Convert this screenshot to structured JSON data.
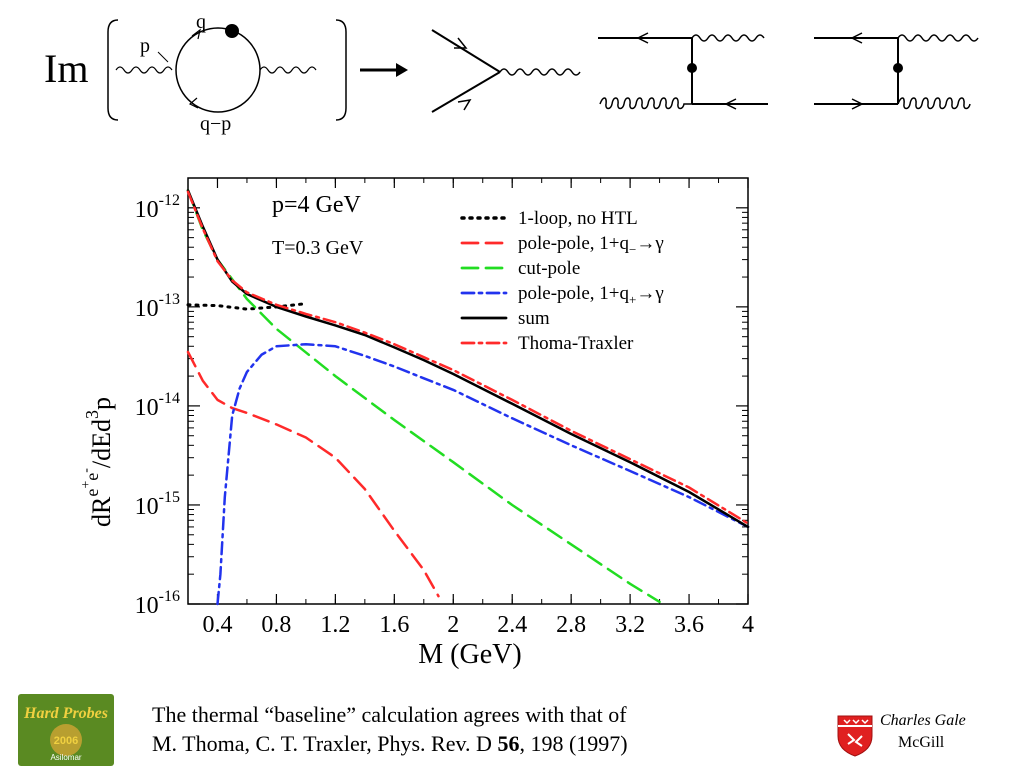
{
  "diagram": {
    "im_label": "Im",
    "loop_labels": {
      "p": "p",
      "q": "q",
      "q_minus_p": "q−p"
    }
  },
  "chart_data": {
    "type": "line",
    "title": "",
    "annotations": [
      "p=4 GeV",
      "T=0.3 GeV"
    ],
    "xlabel": "M (GeV)",
    "ylabel_parts": {
      "a": "dR",
      "sup": "e",
      "sup_plus": "+",
      "sup2": "e",
      "sup_minus": "-",
      "b": "/dEd",
      "sup3": "3",
      "c": "p"
    },
    "xlim": [
      0.2,
      4.0
    ],
    "ylim": [
      1e-16,
      2e-12
    ],
    "yscale": "log",
    "x_ticks": [
      0.4,
      0.8,
      1.2,
      1.6,
      2,
      2.4,
      2.8,
      3.2,
      3.6,
      4
    ],
    "x_tick_labels": [
      "0.4",
      "0.8",
      "1.2",
      "1.6",
      "2",
      "2.4",
      "2.8",
      "3.2",
      "3.6",
      "4"
    ],
    "y_ticks": [
      {
        "base": "10",
        "exp": "-16",
        "value": 1e-16
      },
      {
        "base": "10",
        "exp": "-15",
        "value": 1e-15
      },
      {
        "base": "10",
        "exp": "-14",
        "value": 1e-14
      },
      {
        "base": "10",
        "exp": "-13",
        "value": 1e-13
      },
      {
        "base": "10",
        "exp": "-12",
        "value": 1e-12
      }
    ],
    "legend_position": "top-right",
    "series": [
      {
        "name": "1-loop, no HTL",
        "color": "#000000",
        "dash": "dotted",
        "x": [
          0.2,
          0.4,
          0.6,
          0.8,
          1.0
        ],
        "y": [
          1.05e-13,
          1.03e-13,
          9.5e-14,
          1e-13,
          1.08e-13
        ]
      },
      {
        "name": "pole-pole, 1+q_−→γ",
        "label_parts": [
          "pole-pole, 1+q",
          "−",
          "→γ"
        ],
        "color": "#ff2a2a",
        "dash": "long-dash",
        "x": [
          0.2,
          0.3,
          0.4,
          0.5,
          0.6,
          0.8,
          1.0,
          1.2,
          1.4,
          1.6,
          1.8,
          1.9
        ],
        "y": [
          3.5e-14,
          1.8e-14,
          1.15e-14,
          9.5e-15,
          8.5e-15,
          6.5e-15,
          4.8e-15,
          3e-15,
          1.45e-15,
          5.5e-16,
          2.2e-16,
          1.2e-16
        ]
      },
      {
        "name": "cut-pole",
        "color": "#22dd22",
        "dash": "long-dash",
        "x": [
          0.2,
          0.3,
          0.4,
          0.5,
          0.6,
          0.8,
          1.2,
          1.6,
          2.0,
          2.4,
          2.8,
          3.2,
          3.4
        ],
        "y": [
          1.5e-12,
          6e-13,
          3e-13,
          1.9e-13,
          1.2e-13,
          6e-14,
          2e-14,
          7.2e-15,
          2.7e-15,
          1e-15,
          4e-16,
          1.6e-16,
          1.05e-16
        ]
      },
      {
        "name": "pole-pole, 1+q_+→γ",
        "label_parts": [
          "pole-pole, 1+q",
          "+",
          "→γ"
        ],
        "color": "#2233ee",
        "dash": "dash-dot",
        "x": [
          0.4,
          0.42,
          0.45,
          0.5,
          0.55,
          0.6,
          0.7,
          0.8,
          1.0,
          1.2,
          1.4,
          1.6,
          1.8,
          2.0,
          2.4,
          2.8,
          3.2,
          3.6,
          4.0
        ],
        "y": [
          1e-16,
          2e-16,
          1.2e-15,
          8e-15,
          1.5e-14,
          2.2e-14,
          3.3e-14,
          4e-14,
          4.2e-14,
          4e-14,
          3.2e-14,
          2.5e-14,
          1.9e-14,
          1.45e-14,
          7.5e-15,
          4e-15,
          2.2e-15,
          1.2e-15,
          6e-16
        ]
      },
      {
        "name": "sum",
        "color": "#000000",
        "dash": "solid",
        "x": [
          0.2,
          0.3,
          0.4,
          0.5,
          0.6,
          0.8,
          1.0,
          1.2,
          1.4,
          1.6,
          1.8,
          2.0,
          2.4,
          2.8,
          3.2,
          3.6,
          4.0
        ],
        "y": [
          1.5e-12,
          6.5e-13,
          3e-13,
          1.8e-13,
          1.35e-13,
          1e-13,
          8e-14,
          6.5e-14,
          5.2e-14,
          3.9e-14,
          2.9e-14,
          2.1e-14,
          1.05e-14,
          5.2e-15,
          2.7e-15,
          1.35e-15,
          6e-16
        ]
      },
      {
        "name": "Thoma-Traxler",
        "color": "#ff2a2a",
        "dash": "dash-dot",
        "x": [
          0.2,
          0.3,
          0.4,
          0.5,
          0.6,
          0.8,
          1.0,
          1.2,
          1.4,
          1.6,
          1.8,
          2.0,
          2.4,
          2.8,
          3.2,
          3.6,
          4.0
        ],
        "y": [
          1.45e-12,
          6.2e-13,
          2.9e-13,
          1.85e-13,
          1.4e-13,
          1.05e-13,
          8.5e-14,
          7e-14,
          5.5e-14,
          4.2e-14,
          3.1e-14,
          2.3e-14,
          1.15e-14,
          5.6e-15,
          2.9e-15,
          1.5e-15,
          6.5e-16
        ]
      }
    ]
  },
  "caption": {
    "text_before": "The thermal “baseline” calculation agrees with that of",
    "text_line2_before": "M. Thoma, C. T. Traxler, Phys. Rev. D ",
    "volume": "56",
    "text_after": ", 198 (1997)"
  },
  "logo_left": {
    "line1": "Hard Probes",
    "year": "2006",
    "sub": "Asilomar",
    "bg_color": "#5a8a22",
    "text_color": "#f0d040"
  },
  "credit": {
    "name": "Charles Gale",
    "institution": "McGill",
    "shield_color": "#e02020"
  }
}
